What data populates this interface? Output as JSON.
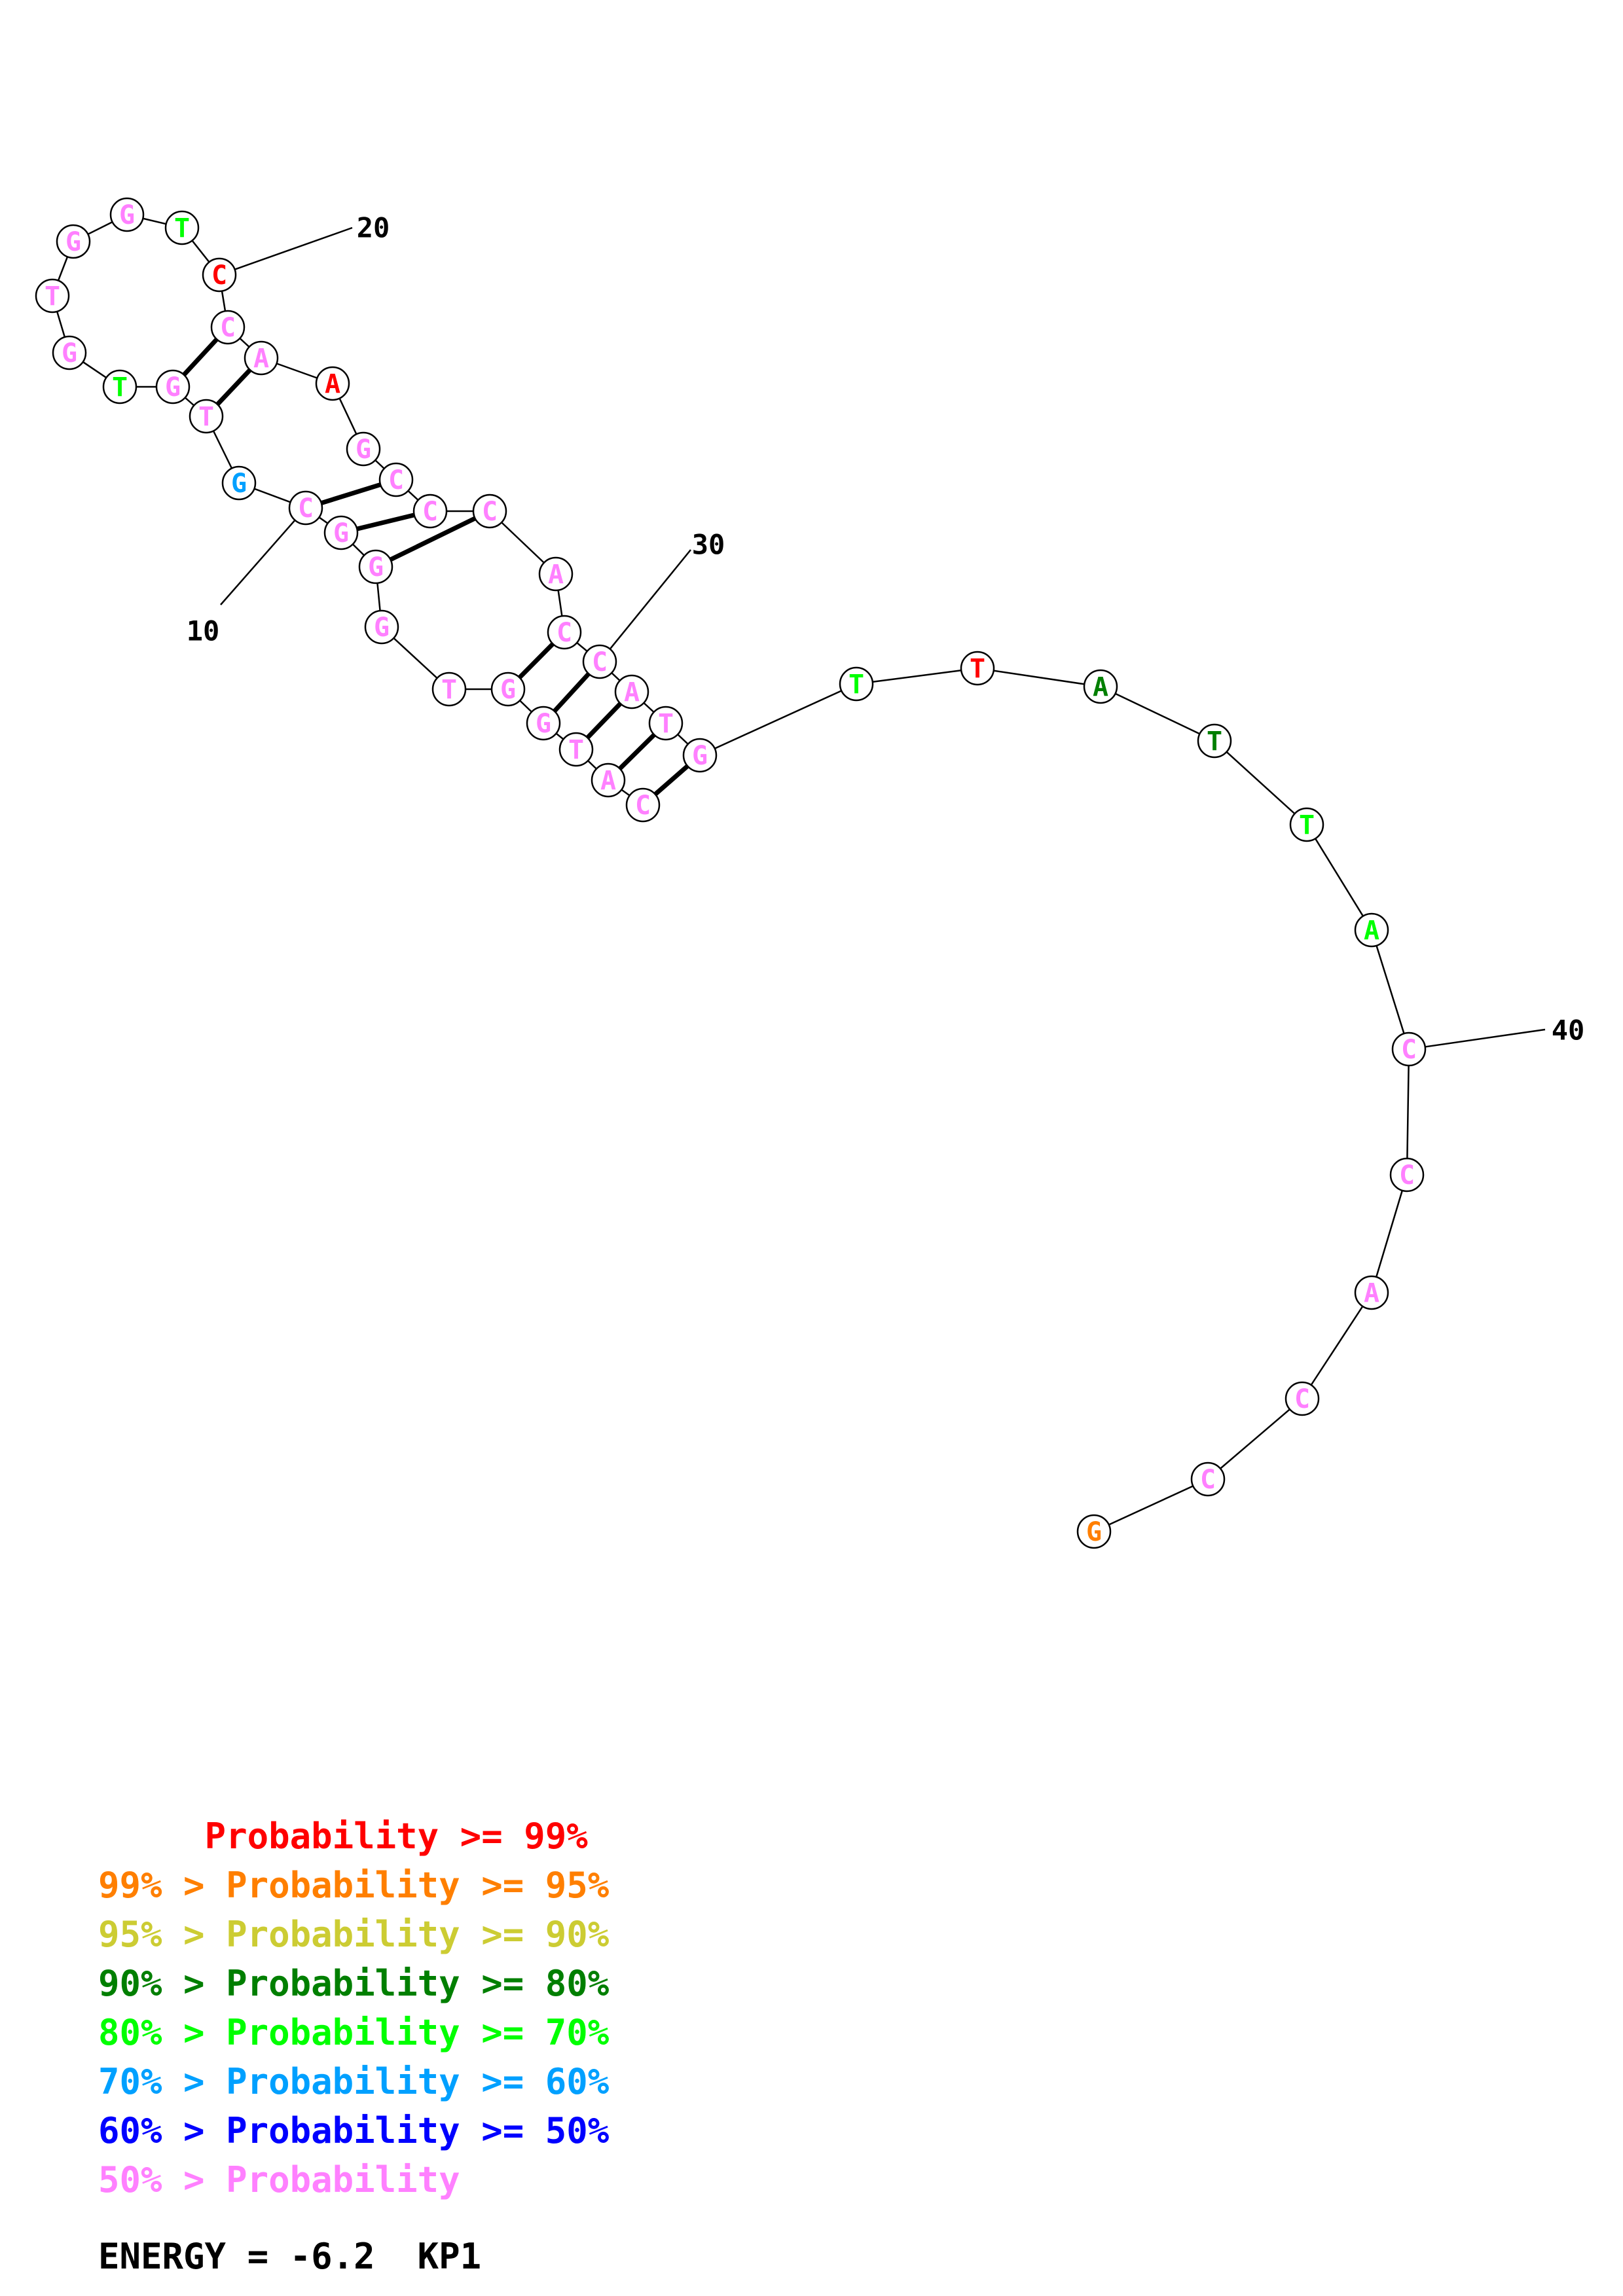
{
  "colors": {
    "red": "#ff0000",
    "orange": "#ff7f00",
    "yellow": "#cccc33",
    "dark_green": "#007f00",
    "green": "#00ff00",
    "sky": "#00a0ff",
    "blue": "#0000ff",
    "pink": "#ff80ff",
    "black": "#000000"
  },
  "bases": [
    {
      "n": 1,
      "letter": "C",
      "color": "pink"
    },
    {
      "n": 2,
      "letter": "A",
      "color": "pink"
    },
    {
      "n": 3,
      "letter": "T",
      "color": "pink"
    },
    {
      "n": 4,
      "letter": "G",
      "color": "pink"
    },
    {
      "n": 5,
      "letter": "G",
      "color": "pink"
    },
    {
      "n": 6,
      "letter": "T",
      "color": "pink"
    },
    {
      "n": 7,
      "letter": "G",
      "color": "pink"
    },
    {
      "n": 8,
      "letter": "G",
      "color": "pink"
    },
    {
      "n": 9,
      "letter": "G",
      "color": "pink"
    },
    {
      "n": 10,
      "letter": "C",
      "color": "pink"
    },
    {
      "n": 11,
      "letter": "G",
      "color": "sky"
    },
    {
      "n": 12,
      "letter": "T",
      "color": "pink"
    },
    {
      "n": 13,
      "letter": "G",
      "color": "pink"
    },
    {
      "n": 14,
      "letter": "T",
      "color": "green"
    },
    {
      "n": 15,
      "letter": "G",
      "color": "pink"
    },
    {
      "n": 16,
      "letter": "T",
      "color": "pink"
    },
    {
      "n": 17,
      "letter": "G",
      "color": "pink"
    },
    {
      "n": 18,
      "letter": "G",
      "color": "pink"
    },
    {
      "n": 19,
      "letter": "T",
      "color": "green"
    },
    {
      "n": 20,
      "letter": "C",
      "color": "red"
    },
    {
      "n": 21,
      "letter": "C",
      "color": "pink"
    },
    {
      "n": 22,
      "letter": "A",
      "color": "pink"
    },
    {
      "n": 23,
      "letter": "A",
      "color": "red"
    },
    {
      "n": 24,
      "letter": "G",
      "color": "pink"
    },
    {
      "n": 25,
      "letter": "C",
      "color": "pink"
    },
    {
      "n": 26,
      "letter": "C",
      "color": "pink"
    },
    {
      "n": 27,
      "letter": "C",
      "color": "pink"
    },
    {
      "n": 28,
      "letter": "A",
      "color": "pink"
    },
    {
      "n": 29,
      "letter": "C",
      "color": "pink"
    },
    {
      "n": 30,
      "letter": "C",
      "color": "pink"
    },
    {
      "n": 31,
      "letter": "A",
      "color": "pink"
    },
    {
      "n": 32,
      "letter": "T",
      "color": "pink"
    },
    {
      "n": 33,
      "letter": "G",
      "color": "pink"
    },
    {
      "n": 34,
      "letter": "T",
      "color": "green"
    },
    {
      "n": 35,
      "letter": "T",
      "color": "red"
    },
    {
      "n": 36,
      "letter": "A",
      "color": "dark_green"
    },
    {
      "n": 37,
      "letter": "T",
      "color": "dark_green"
    },
    {
      "n": 38,
      "letter": "T",
      "color": "green"
    },
    {
      "n": 39,
      "letter": "A",
      "color": "green"
    },
    {
      "n": 40,
      "letter": "C",
      "color": "pink"
    },
    {
      "n": 41,
      "letter": "C",
      "color": "pink"
    },
    {
      "n": 42,
      "letter": "A",
      "color": "pink"
    },
    {
      "n": 43,
      "letter": "C",
      "color": "pink"
    },
    {
      "n": 44,
      "letter": "C",
      "color": "pink"
    },
    {
      "n": 45,
      "letter": "G",
      "color": "orange"
    }
  ],
  "pairs": [
    [
      1,
      33
    ],
    [
      2,
      32
    ],
    [
      3,
      31
    ],
    [
      4,
      30
    ],
    [
      5,
      29
    ],
    [
      8,
      27
    ],
    [
      9,
      26
    ],
    [
      10,
      25
    ],
    [
      12,
      22
    ],
    [
      13,
      21
    ]
  ],
  "tick_labels": [
    {
      "n": 10,
      "text": "10"
    },
    {
      "n": 20,
      "text": "20"
    },
    {
      "n": 30,
      "text": "30"
    },
    {
      "n": 40,
      "text": "40"
    }
  ],
  "legend": [
    {
      "text": "     Probability >= 99%",
      "color": "red"
    },
    {
      "text": "99% > Probability >= 95%",
      "color": "orange"
    },
    {
      "text": "95% > Probability >= 90%",
      "color": "yellow"
    },
    {
      "text": "90% > Probability >= 80%",
      "color": "dark_green"
    },
    {
      "text": "80% > Probability >= 70%",
      "color": "green"
    },
    {
      "text": "70% > Probability >= 60%",
      "color": "sky"
    },
    {
      "text": "60% > Probability >= 50%",
      "color": "blue"
    },
    {
      "text": "50% > Probability",
      "color": "pink"
    }
  ],
  "energy_text": "ENERGY = -6.2  KP1"
}
